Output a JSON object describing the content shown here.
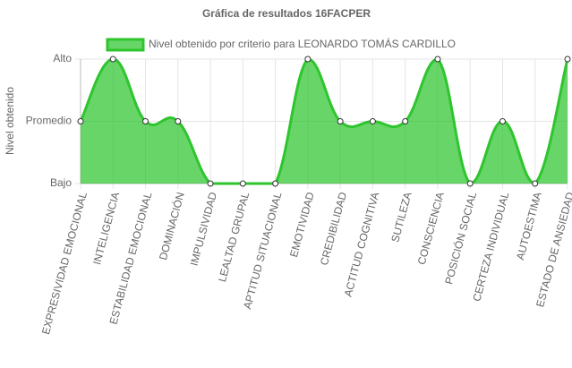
{
  "chart_data": {
    "type": "line",
    "title": "Gráfica de resultados 16FACPER",
    "y_label": "Nivel obtenido",
    "categories": [
      "EXPRESIVIDAD EMOCIONAL",
      "INTELIGENCIA",
      "ESTABILIDAD EMOCIONAL",
      "DOMINACIÓN",
      "IMPULSIVIDAD",
      "LEALTAD GRUPAL",
      "APTITUD SITUACIONAL",
      "EMOTIVIDAD",
      "CREDIBILIDAD",
      "ACTITUD COGNITIVA",
      "SUTILEZA",
      "CONSCIENCIA",
      "POSICIÓN SOCIAL",
      "CERTEZA INDIVIDUAL",
      "AUTOESTIMA",
      "ESTADO DE ANSIEDAD"
    ],
    "series": [
      {
        "name": "Nivel obtenido por criterio para LEONARDO TOMÁS CARDILLO",
        "color": "#2ec52e",
        "values": [
          2,
          3,
          2,
          2,
          1,
          1,
          1,
          3,
          2,
          2,
          2,
          3,
          1,
          2,
          1,
          3
        ]
      }
    ],
    "ylim": [
      1,
      3
    ],
    "yticks": [
      {
        "value": 1,
        "label": "Bajo"
      },
      {
        "value": 2,
        "label": "Promedio"
      },
      {
        "value": 3,
        "label": "Alto"
      }
    ],
    "grid": true
  }
}
